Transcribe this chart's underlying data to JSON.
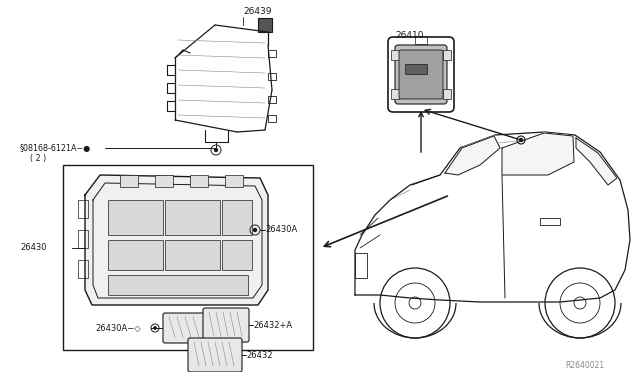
{
  "bg_color": "#ffffff",
  "line_color": "#1a1a1a",
  "gray_color": "#888888",
  "light_gray": "#cccccc",
  "fig_width": 6.4,
  "fig_height": 3.72,
  "dpi": 100,
  "ref_code": "R2640021",
  "label_26439": "26439",
  "label_26410": "26410",
  "label_08168": "§08168-6121A−●",
  "label_2": "( 2 )",
  "label_26430": "26430",
  "label_26430A_r": "26430A",
  "label_26430A_l": "26430A−◇",
  "label_26432pA": "26432+A",
  "label_26432": "26432"
}
